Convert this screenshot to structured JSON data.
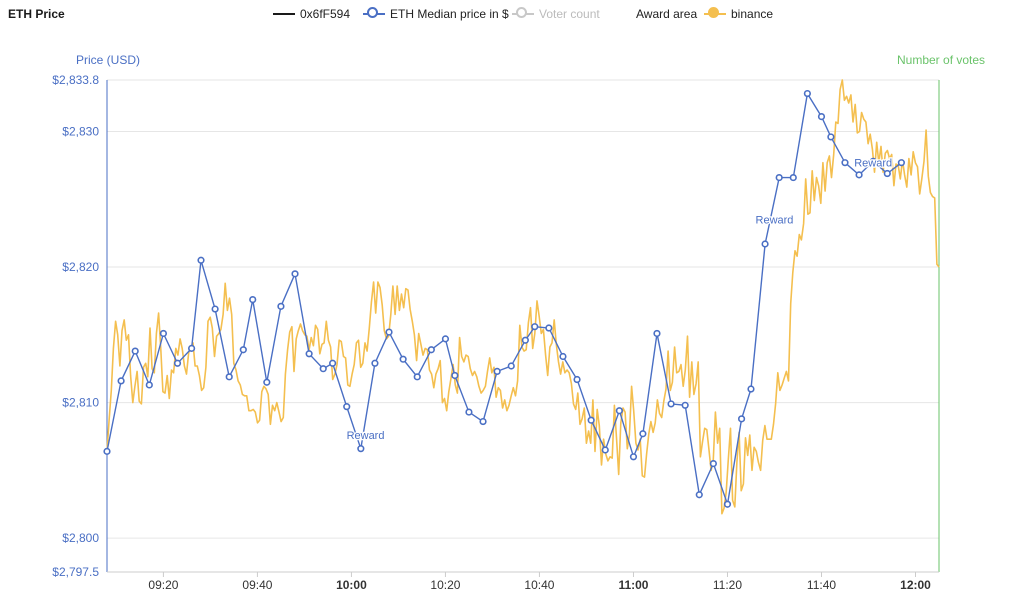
{
  "title": "ETH Price",
  "legend": [
    {
      "label": "0x6fF594",
      "kind": "line",
      "color": "#1a1a1a",
      "disabled": false
    },
    {
      "label": "ETH Median price in $",
      "kind": "line-dot",
      "color": "#4a6fc4",
      "disabled": false
    },
    {
      "label": "Voter count",
      "kind": "line-dot",
      "color": "#c8c8c8",
      "disabled": true
    },
    {
      "label": "Award area",
      "kind": "none",
      "color": "",
      "disabled": false
    },
    {
      "label": "binance",
      "kind": "line-dot",
      "color": "#f4bf4f",
      "disabled": false
    }
  ],
  "chart_data": {
    "type": "line",
    "ylabel": "Price (USD)",
    "y2label": "Number of votes",
    "ylim": [
      2797.5,
      2833.8
    ],
    "y_ticks": [
      {
        "value": 2797.5,
        "label": "$2,797.5"
      },
      {
        "value": 2800,
        "label": "$2,800"
      },
      {
        "value": 2810,
        "label": "$2,810"
      },
      {
        "value": 2820,
        "label": "$2,820"
      },
      {
        "value": 2830,
        "label": "$2,830"
      },
      {
        "value": 2833.8,
        "label": "$2,833.8"
      }
    ],
    "x_ticks": [
      {
        "time": "09:20",
        "label": "09:20",
        "bold": false
      },
      {
        "time": "09:40",
        "label": "09:40",
        "bold": false
      },
      {
        "time": "10:00",
        "label": "10:00",
        "bold": true
      },
      {
        "time": "10:20",
        "label": "10:20",
        "bold": false
      },
      {
        "time": "10:40",
        "label": "10:40",
        "bold": false
      },
      {
        "time": "11:00",
        "label": "11:00",
        "bold": true
      },
      {
        "time": "11:20",
        "label": "11:20",
        "bold": false
      },
      {
        "time": "11:40",
        "label": "11:40",
        "bold": false
      },
      {
        "time": "12:00",
        "label": "12:00",
        "bold": true
      }
    ],
    "xlim": [
      "09:08",
      "12:05"
    ],
    "grid": true,
    "series": [
      {
        "name": "ETH Median price in $",
        "color": "#4a6fc4",
        "points": [
          [
            "09:08",
            2806.4
          ],
          [
            "09:11",
            2811.6
          ],
          [
            "09:14",
            2813.8
          ],
          [
            "09:17",
            2811.3
          ],
          [
            "09:20",
            2815.1
          ],
          [
            "09:23",
            2812.9
          ],
          [
            "09:26",
            2814.0
          ],
          [
            "09:28",
            2820.5
          ],
          [
            "09:31",
            2816.9
          ],
          [
            "09:34",
            2811.9
          ],
          [
            "09:37",
            2813.9
          ],
          [
            "09:39",
            2817.6
          ],
          [
            "09:42",
            2811.5
          ],
          [
            "09:45",
            2817.1
          ],
          [
            "09:48",
            2819.5
          ],
          [
            "09:51",
            2813.6
          ],
          [
            "09:54",
            2812.5
          ],
          [
            "09:56",
            2812.9
          ],
          [
            "09:59",
            2809.7
          ],
          [
            "10:02",
            2806.6
          ],
          [
            "10:05",
            2812.9
          ],
          [
            "10:08",
            2815.2
          ],
          [
            "10:11",
            2813.2
          ],
          [
            "10:14",
            2811.9
          ],
          [
            "10:17",
            2813.9
          ],
          [
            "10:20",
            2814.7
          ],
          [
            "10:22",
            2812.0
          ],
          [
            "10:25",
            2809.3
          ],
          [
            "10:28",
            2808.6
          ],
          [
            "10:31",
            2812.3
          ],
          [
            "10:34",
            2812.7
          ],
          [
            "10:37",
            2814.6
          ],
          [
            "10:39",
            2815.6
          ],
          [
            "10:42",
            2815.5
          ],
          [
            "10:45",
            2813.4
          ],
          [
            "10:48",
            2811.7
          ],
          [
            "10:51",
            2808.7
          ],
          [
            "10:54",
            2806.5
          ],
          [
            "10:57",
            2809.4
          ],
          [
            "11:00",
            2806.0
          ],
          [
            "11:02",
            2807.7
          ],
          [
            "11:05",
            2815.1
          ],
          [
            "11:08",
            2809.9
          ],
          [
            "11:11",
            2809.8
          ],
          [
            "11:14",
            2803.2
          ],
          [
            "11:17",
            2805.5
          ],
          [
            "11:20",
            2802.5
          ],
          [
            "11:23",
            2808.8
          ],
          [
            "11:25",
            2811.0
          ],
          [
            "11:28",
            2821.7
          ],
          [
            "11:31",
            2826.6
          ],
          [
            "11:34",
            2826.6
          ],
          [
            "11:37",
            2832.8
          ],
          [
            "11:40",
            2831.1
          ],
          [
            "11:42",
            2829.6
          ],
          [
            "11:45",
            2827.7
          ],
          [
            "11:48",
            2826.8
          ],
          [
            "11:51",
            2827.8
          ],
          [
            "11:54",
            2826.9
          ],
          [
            "11:57",
            2827.7
          ]
        ]
      },
      {
        "name": "binance",
        "color": "#f4bf4f",
        "values": [
          2806.4,
          2808.7,
          2810.9,
          2814.0,
          2816.0,
          2815.0,
          2812.7,
          2815.3,
          2816.1,
          2814.6,
          2815.0,
          2812.0,
          2810.0,
          2811.2,
          2812.3,
          2810.1,
          2809.9,
          2812.6,
          2812.9,
          2811.9,
          2815.5,
          2812.5,
          2812.2,
          2815.1,
          2816.6,
          2814.1,
          2810.8,
          2810.7,
          2812.0,
          2810.3,
          2812.4,
          2812.2,
          2814.0,
          2813.5,
          2814.7,
          2814.0,
          2812.7,
          2812.1,
          2813.7,
          2813.9,
          2814.4,
          2812.7,
          2812.7,
          2812.0,
          2810.9,
          2811.1,
          2812.6,
          2816.0,
          2816.3,
          2815.5,
          2813.4,
          2814.9,
          2815.1,
          2815.4,
          2816.5,
          2818.8,
          2816.8,
          2817.7,
          2816.5,
          2812.9,
          2812.4,
          2811.6,
          2811.3,
          2810.6,
          2810.5,
          2810.5,
          2809.4,
          2809.4,
          2809.5,
          2809.3,
          2808.5,
          2808.7,
          2810.8,
          2811.2,
          2811.0,
          2810.6,
          2808.4,
          2809.8,
          2809.4,
          2810.0,
          2809.3,
          2808.6,
          2808.9,
          2812.1,
          2813.9,
          2815.2,
          2815.6,
          2812.3,
          2814.7,
          2815.3,
          2815.8,
          2815.3,
          2815.0,
          2814.9,
          2813.9,
          2814.8,
          2814.2,
          2815.7,
          2815.4,
          2813.6,
          2814.3,
          2814.4,
          2816.0,
          2814.6,
          2814.1,
          2811.7,
          2812.1,
          2812.8,
          2814.6,
          2814.5,
          2813.4,
          2813.3,
          2811.3,
          2811.2,
          2812.1,
          2812.8,
          2814.4,
          2814.6,
          2812.6,
          2812.9,
          2814.4,
          2813.8,
          2815.5,
          2817.4,
          2818.9,
          2816.6,
          2818.9,
          2818.5,
          2817.2,
          2815.3,
          2814.7,
          2814.9,
          2816.5,
          2818.6,
          2816.5,
          2818.6,
          2816.8,
          2818.0,
          2817.0,
          2818.4,
          2818.3,
          2816.9,
          2816.0,
          2815.0,
          2813.1,
          2815.1,
          2814.3,
          2813.5,
          2814.0,
          2813.9,
          2812.4,
          2812.1,
          2811.1,
          2812.1,
          2812.5,
          2813.1,
          2810.0,
          2810.3,
          2809.4,
          2810.8,
          2811.8,
          2812.8,
          2811.3,
          2810.7,
          2814.8,
          2813.4,
          2813.0,
          2813.5,
          2813.4,
          2812.5,
          2812.0,
          2812.3,
          2811.9,
          2811.2,
          2810.7,
          2810.9,
          2811.2,
          2812.3,
          2813.3,
          2812.2,
          2812.6,
          2810.4,
          2811.1,
          2810.9,
          2809.6,
          2810.2,
          2809.4,
          2809.8,
          2810.5,
          2811.1,
          2810.5,
          2811.6,
          2815.7,
          2814.1,
          2813.8,
          2813.9,
          2815.9,
          2817.0,
          2814.0,
          2815.1,
          2817.5,
          2816.4,
          2815.1,
          2815.4,
          2813.5,
          2812.0,
          2814.1,
          2814.4,
          2816.1,
          2814.3,
          2813.0,
          2812.1,
          2813.0,
          2812.2,
          2812.4,
          2812.2,
          2811.4,
          2809.9,
          2809.5,
          2810.7,
          2808.4,
          2808.8,
          2809.6,
          2807.0,
          2807.9,
          2807.0,
          2810.2,
          2806.4,
          2809.5,
          2808.3,
          2805.4,
          2807.3,
          2806.2,
          2805.7,
          2806.0,
          2805.9,
          2809.8,
          2807.4,
          2804.7,
          2808.5,
          2809.6,
          2809.3,
          2806.6,
          2807.6,
          2811.2,
          2809.4,
          2807.0,
          2806.5,
          2807.3,
          2804.6,
          2804.5,
          2806.2,
          2807.7,
          2808.6,
          2807.8,
          2808.5,
          2810.2,
          2809.2,
          2808.9,
          2810.1,
          2811.0,
          2813.8,
          2810.9,
          2811.5,
          2814.1,
          2812.2,
          2812.3,
          2812.8,
          2811.2,
          2812.4,
          2814.9,
          2810.4,
          2813.0,
          2810.6,
          2811.4,
          2813.0,
          2806.0,
          2807.1,
          2808.1,
          2808.0,
          2806.5,
          2805.0,
          2805.8,
          2809.3,
          2807.0,
          2808.1,
          2801.8,
          2802.2,
          2803.4,
          2805.8,
          2808.1,
          2802.8,
          2802.3,
          2805.6,
          2807.8,
          2803.5,
          2804.0,
          2807.4,
          2806.1,
          2807.6,
          2805.0,
          2806.7,
          2806.4,
          2805.6,
          2805.0,
          2807.2,
          2808.3,
          2807.3,
          2807.3,
          2807.3,
          2808.4,
          2809.9,
          2812.2,
          2810.9,
          2811.3,
          2811.8,
          2812.3,
          2811.6,
          2817.3,
          2819.6,
          2821.2,
          2820.8,
          2822.4,
          2822.0,
          2823.2,
          2826.5,
          2823.9,
          2824.0,
          2827.1,
          2824.9,
          2826.6,
          2826.0,
          2824.7,
          2827.7,
          2825.6,
          2827.7,
          2828.2,
          2826.6,
          2828.3,
          2830.7,
          2830.6,
          2833.1,
          2834.6,
          2832.3,
          2832.6,
          2832.1,
          2832.7,
          2830.7,
          2832.0,
          2829.9,
          2830.0,
          2831.4,
          2830.9,
          2830.7,
          2829.1,
          2829.8,
          2828.7,
          2827.0,
          2829.2,
          2827.7,
          2828.9,
          2827.0,
          2828.4,
          2828.6,
          2828.0,
          2828.3,
          2826.0,
          2827.6,
          2827.5,
          2826.5,
          2827.9,
          2826.8,
          2825.9,
          2828.0,
          2826.8,
          2828.5,
          2827.7,
          2827.4,
          2825.4,
          2826.5,
          2827.8,
          2830.1,
          2826.7,
          2825.5,
          2825.2,
          2825.1,
          2820.2,
          2820.0
        ]
      }
    ],
    "annotations": [
      {
        "label": "Reward",
        "time": "10:03",
        "value": 2807.6
      },
      {
        "label": "Reward",
        "time": "11:30",
        "value": 2823.5
      },
      {
        "label": "Reward",
        "time": "11:51",
        "value": 2827.7
      }
    ]
  }
}
